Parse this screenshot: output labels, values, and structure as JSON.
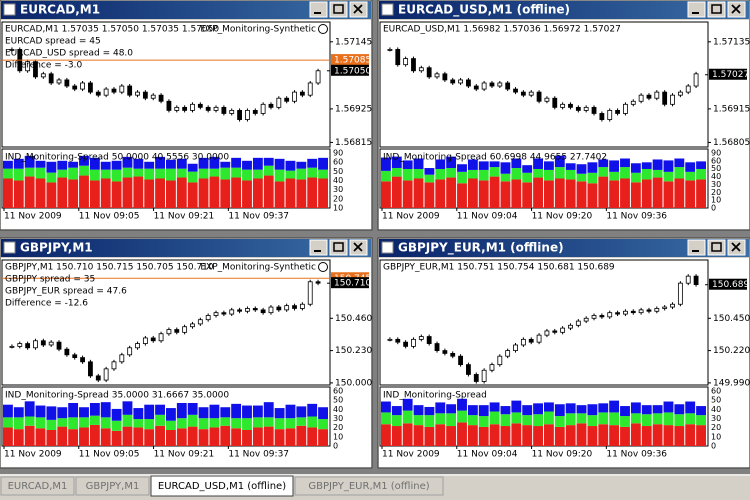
{
  "windows": [
    {
      "title": "EURCAD,M1",
      "header": "EURCAD,M1  1.57035 1.57050 1.57035 1.57050",
      "expert": "EXP_Monitoring-Synthetic",
      "info": [
        "EURCAD spread = 45",
        "EURCAD_USD spread = 48.0",
        "Difference = -3.0"
      ],
      "price_ylim": [
        1.568,
        1.5721
      ],
      "price_ticks": [
        1.57145,
        1.56925,
        1.56815
      ],
      "current": {
        "value": 1.5705,
        "label": "1.57050"
      },
      "alert": 1.57085,
      "closes": [
        1.5712,
        1.5705,
        1.5708,
        1.5703,
        1.5704,
        1.5701,
        1.5702,
        1.57,
        1.5699,
        1.5701,
        1.5698,
        1.5697,
        1.5699,
        1.5698,
        1.57,
        1.5697,
        1.5698,
        1.5696,
        1.5697,
        1.5695,
        1.5692,
        1.5693,
        1.5692,
        1.5694,
        1.5693,
        1.5692,
        1.5693,
        1.5691,
        1.5692,
        1.5689,
        1.5692,
        1.5691,
        1.5694,
        1.5693,
        1.5696,
        1.5695,
        1.5698,
        1.5697,
        1.5701,
        1.5705
      ],
      "indicator": {
        "label": "IND_Monitoring-Spread 50.0000 40.5556 30.0000",
        "ylim": [
          0,
          60
        ],
        "ticks": [
          90,
          60,
          50,
          40,
          30,
          20,
          10
        ],
        "series": [
          {
            "color": "#e8201c",
            "values": [
              30,
              28,
              32,
              30,
              26,
              31,
              29,
              33,
              28,
              30,
              27,
              31,
              32,
              29,
              30,
              28,
              31,
              26,
              30,
              32,
              29,
              31,
              28,
              30,
              33,
              27,
              30,
              29,
              31,
              30
            ]
          },
          {
            "color": "#2ee82e",
            "values": [
              10,
              12,
              9,
              11,
              10,
              8,
              12,
              10,
              11,
              9,
              12,
              10,
              8,
              11,
              10,
              12,
              9,
              11,
              10,
              8,
              12,
              10,
              11,
              9,
              10,
              12,
              8,
              11,
              10,
              9
            ]
          },
          {
            "color": "#1010e8",
            "values": [
              8,
              10,
              12,
              7,
              11,
              9,
              6,
              10,
              12,
              8,
              9,
              11,
              10,
              7,
              12,
              9,
              10,
              8,
              11,
              12,
              6,
              10,
              9,
              12,
              8,
              11,
              10,
              7,
              9,
              12
            ]
          }
        ]
      },
      "time_labels": [
        "11 Nov 2009",
        "11 Nov 09:05",
        "11 Nov 09:21",
        "11 Nov 09:37"
      ]
    },
    {
      "title": "EURCAD_USD,M1 (offline)",
      "header": "EURCAD_USD,M1  1.56982 1.57036 1.56972 1.57027",
      "info": [],
      "price_ylim": [
        1.5679,
        1.572
      ],
      "price_ticks": [
        1.57135,
        1.56915,
        1.56805
      ],
      "current": 1.57027,
      "closes": [
        1.5711,
        1.5706,
        1.5708,
        1.5704,
        1.5705,
        1.5702,
        1.5703,
        1.5701,
        1.57,
        1.5701,
        1.5699,
        1.5698,
        1.57,
        1.5699,
        1.57,
        1.5698,
        1.5697,
        1.5696,
        1.5697,
        1.5694,
        1.5695,
        1.5692,
        1.5693,
        1.5692,
        1.5691,
        1.5692,
        1.569,
        1.5688,
        1.5691,
        1.569,
        1.5693,
        1.5694,
        1.5696,
        1.5695,
        1.5697,
        1.5693,
        1.5696,
        1.5697,
        1.5699,
        1.5703
      ],
      "indicator": {
        "label": "IND_Monitoring-Spread 60.6998 44.9655 27.7402",
        "ylim": [
          0,
          62
        ],
        "ticks": [
          90,
          60,
          50,
          40,
          30,
          20,
          10,
          0
        ],
        "series": [
          {
            "color": "#e8201c",
            "values": [
              28,
              33,
              29,
              31,
              27,
              30,
              32,
              26,
              31,
              29,
              33,
              28,
              30,
              27,
              32,
              29,
              31,
              30,
              28,
              26,
              33,
              29,
              31,
              27,
              30,
              32,
              28,
              31,
              29,
              30
            ]
          },
          {
            "color": "#2ee82e",
            "values": [
              11,
              9,
              12,
              10,
              8,
              11,
              10,
              12,
              9,
              11,
              10,
              8,
              12,
              10,
              9,
              11,
              12,
              10,
              8,
              11,
              10,
              9,
              12,
              10,
              11,
              8,
              10,
              12,
              9,
              11
            ]
          },
          {
            "color": "#1010e8",
            "values": [
              14,
              12,
              9,
              11,
              7,
              10,
              12,
              8,
              11,
              9,
              6,
              12,
              10,
              8,
              11,
              9,
              12,
              7,
              10,
              11,
              8,
              12,
              9,
              10,
              7,
              11,
              12,
              9,
              10,
              8
            ]
          }
        ]
      },
      "time_labels": [
        "11 Nov 2009",
        "11 Nov 09:04",
        "11 Nov 09:20",
        "11 Nov 09:36"
      ]
    },
    {
      "title": "GBPJPY,M1",
      "header": "GBPJPY,M1  150.710 150.715 150.705 150.710",
      "expert": "EXP_Monitoring-Synthetic",
      "info": [
        "GBPJPY spread = 35",
        "GBPJPY_EUR spread = 47.6",
        "Difference = -12.6"
      ],
      "price_ylim": [
        149.985,
        150.875
      ],
      "price_ticks": [
        {
          "value": 150.46,
          "label": "150.460"
        },
        {
          "value": 150.23,
          "label": "150.230"
        },
        {
          "value": 150,
          "label": "150.000"
        }
      ],
      "current": {
        "value": 150.71,
        "label": "150.710"
      },
      "alert": 150.745,
      "closes": [
        150.26,
        150.28,
        150.25,
        150.3,
        150.27,
        150.29,
        150.24,
        150.2,
        150.18,
        150.15,
        150.05,
        150.02,
        150.1,
        150.15,
        150.2,
        150.25,
        150.28,
        150.32,
        150.3,
        150.35,
        150.38,
        150.36,
        150.4,
        150.42,
        150.45,
        150.48,
        150.5,
        150.49,
        150.52,
        150.51,
        150.53,
        150.52,
        150.5,
        150.54,
        150.52,
        150.55,
        150.53,
        150.56,
        150.72,
        150.71
      ],
      "indicator": {
        "label": "IND_Monitoring-Spread 35.0000 31.6667 35.0000",
        "ylim": [
          0,
          70
        ],
        "ticks": [
          60,
          50,
          40,
          30,
          20,
          10,
          0
        ],
        "series": [
          {
            "color": "#e8201c",
            "values": [
              22,
              20,
              24,
              21,
              19,
              23,
              20,
              22,
              25,
              21,
              18,
              23,
              22,
              20,
              24,
              19,
              21,
              23,
              20,
              22,
              24,
              21,
              19,
              22,
              23,
              20,
              21,
              24,
              22,
              20
            ]
          },
          {
            "color": "#2ee82e",
            "values": [
              12,
              14,
              11,
              13,
              12,
              10,
              14,
              12,
              11,
              13,
              12,
              14,
              10,
              12,
              13,
              11,
              12,
              14,
              13,
              11,
              10,
              12,
              14,
              12,
              11,
              13,
              12,
              10,
              13,
              12
            ]
          },
          {
            "color": "#1010e8",
            "values": [
              15,
              12,
              18,
              14,
              16,
              13,
              17,
              12,
              15,
              18,
              14,
              16,
              13,
              17,
              12,
              15,
              18,
              14,
              13,
              16,
              12,
              17,
              15,
              14,
              18,
              12,
              16,
              13,
              15,
              14
            ]
          }
        ]
      },
      "time_labels": [
        "11 Nov 2009",
        "11 Nov 09:05",
        "11 Nov 09:21",
        "11 Nov 09:37"
      ]
    },
    {
      "title": "GBPJPY_EUR,M1 (offline)",
      "header": "GBPJPY_EUR,M1  150.751 150.754 150.681 150.689",
      "info": [],
      "price_ylim": [
        149.975,
        150.865
      ],
      "price_ticks": [
        {
          "value": 150.45,
          "label": "150.450"
        },
        {
          "value": 150.22,
          "label": "150.220"
        },
        {
          "value": 149.99,
          "label": "149.990"
        }
      ],
      "current": 150.689,
      "closes": [
        150.3,
        150.28,
        150.25,
        150.3,
        150.32,
        150.27,
        150.22,
        150.2,
        150.18,
        150.12,
        150.05,
        150,
        150.08,
        150.12,
        150.18,
        150.22,
        150.26,
        150.3,
        150.28,
        150.33,
        150.36,
        150.35,
        150.38,
        150.4,
        150.43,
        150.45,
        150.47,
        150.46,
        150.49,
        150.48,
        150.5,
        150.49,
        150.51,
        150.5,
        150.52,
        150.53,
        150.55,
        150.7,
        150.75,
        150.69
      ],
      "indicator": {
        "label": "IND_Monitoring-Spread",
        "ylim": [
          0,
          65
        ],
        "ticks": [
          60,
          50,
          40,
          30,
          20,
          10,
          0
        ],
        "series": [
          {
            "color": "#e8201c",
            "values": [
              24,
              22,
              25,
              23,
              21,
              24,
              22,
              26,
              23,
              21,
              24,
              22,
              25,
              23,
              22,
              24,
              21,
              23,
              25,
              22,
              24,
              23,
              21,
              25,
              22,
              24,
              23,
              22,
              24,
              23
            ]
          },
          {
            "color": "#2ee82e",
            "values": [
              13,
              12,
              14,
              11,
              13,
              12,
              14,
              13,
              11,
              12,
              14,
              13,
              12,
              11,
              13,
              14,
              12,
              13,
              11,
              12,
              13,
              14,
              12,
              11,
              13,
              12,
              14,
              13,
              12,
              11
            ]
          },
          {
            "color": "#1010e8",
            "values": [
              12,
              10,
              13,
              11,
              9,
              12,
              10,
              13,
              11,
              12,
              10,
              9,
              13,
              11,
              12,
              10,
              13,
              11,
              9,
              12,
              10,
              13,
              11,
              12,
              10,
              9,
              12,
              11,
              13,
              10
            ]
          }
        ]
      },
      "time_labels": [
        "11 Nov 2009",
        "11 Nov 09:04",
        "11 Nov 09:20",
        "11 Nov 09:36"
      ]
    }
  ],
  "tabs": [
    "EURCAD,M1",
    "GBPJPY,M1",
    "EURCAD_USD,M1 (offline)",
    "GBPJPY_EUR,M1 (offline)"
  ],
  "active_tab": 2
}
